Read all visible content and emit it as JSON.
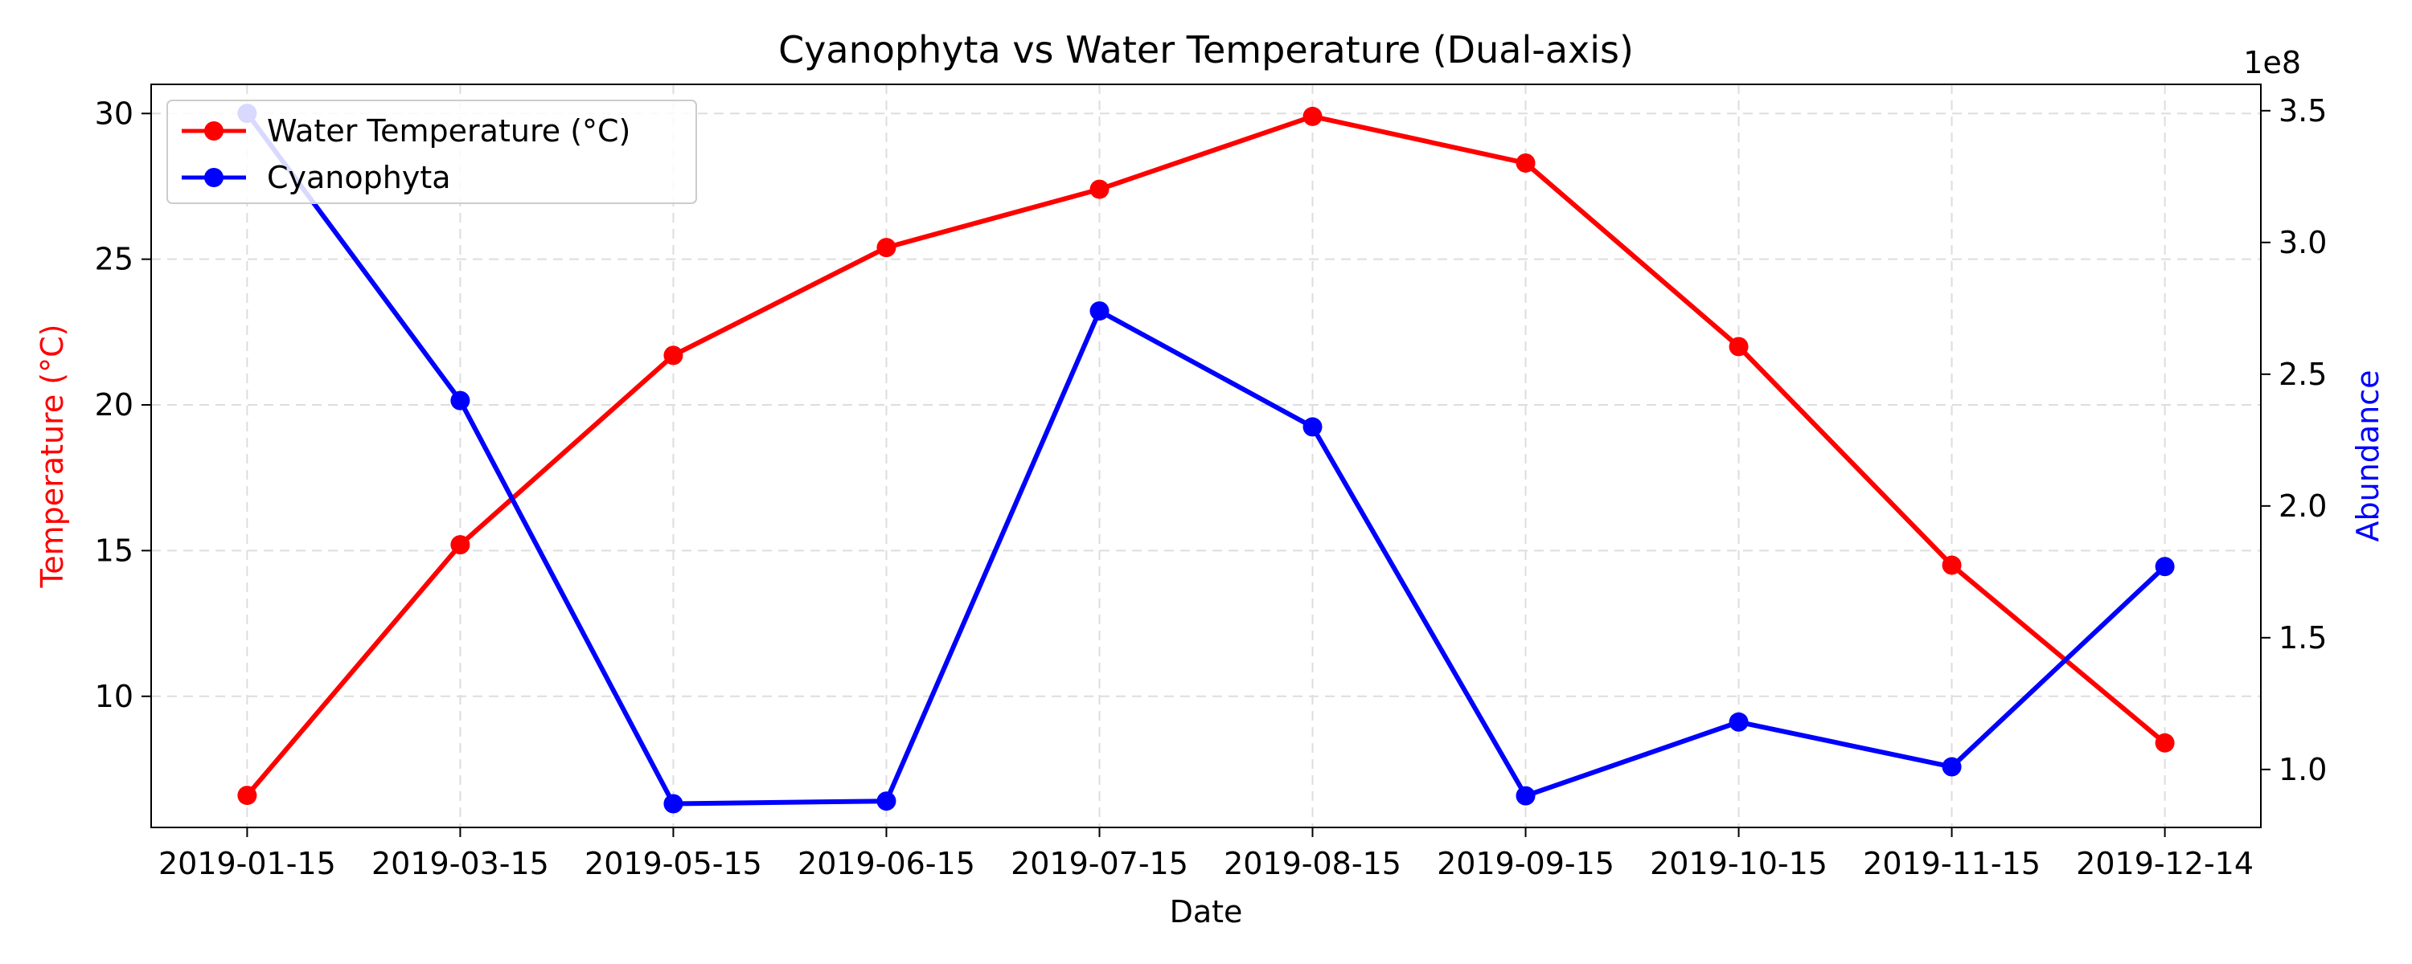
{
  "chart_data": {
    "type": "line",
    "title": "Cyanophyta vs Water Temperature (Dual-axis)",
    "xlabel": "Date",
    "ylabel_left": "Temperature (°C)",
    "ylabel_right": "Abundance",
    "right_axis_multiplier": "1e8",
    "categories": [
      "2019-01-15",
      "2019-03-15",
      "2019-05-15",
      "2019-06-15",
      "2019-07-15",
      "2019-08-15",
      "2019-09-15",
      "2019-10-15",
      "2019-11-15",
      "2019-12-14"
    ],
    "left_axis": {
      "ylim": [
        5.5,
        31
      ],
      "ticks": [
        10,
        15,
        20,
        25,
        30
      ]
    },
    "right_axis": {
      "ylim": [
        0.78,
        3.6
      ],
      "ticks": [
        1.0,
        1.5,
        2.0,
        2.5,
        3.0,
        3.5
      ],
      "tick_labels": [
        "1.0",
        "1.5",
        "2.0",
        "2.5",
        "3.0",
        "3.5"
      ]
    },
    "grid": true,
    "legend": {
      "position": "top-left",
      "entries": [
        "Water Temperature (°C)",
        "Cyanophyta"
      ]
    },
    "series": [
      {
        "name": "Water Temperature (°C)",
        "axis": "left",
        "color": "#ff0000",
        "values": [
          6.6,
          15.2,
          21.7,
          25.4,
          27.4,
          29.9,
          28.3,
          22.0,
          14.5,
          8.4
        ]
      },
      {
        "name": "Cyanophyta",
        "axis": "right",
        "color": "#0000ff",
        "values": [
          3.49,
          2.4,
          0.87,
          0.88,
          2.74,
          2.3,
          0.9,
          1.18,
          1.01,
          1.77
        ]
      }
    ],
    "colors": {
      "left_label": "#ff0000",
      "right_label": "#0000ff",
      "grid": "#dddddd",
      "axis": "#000000"
    }
  }
}
